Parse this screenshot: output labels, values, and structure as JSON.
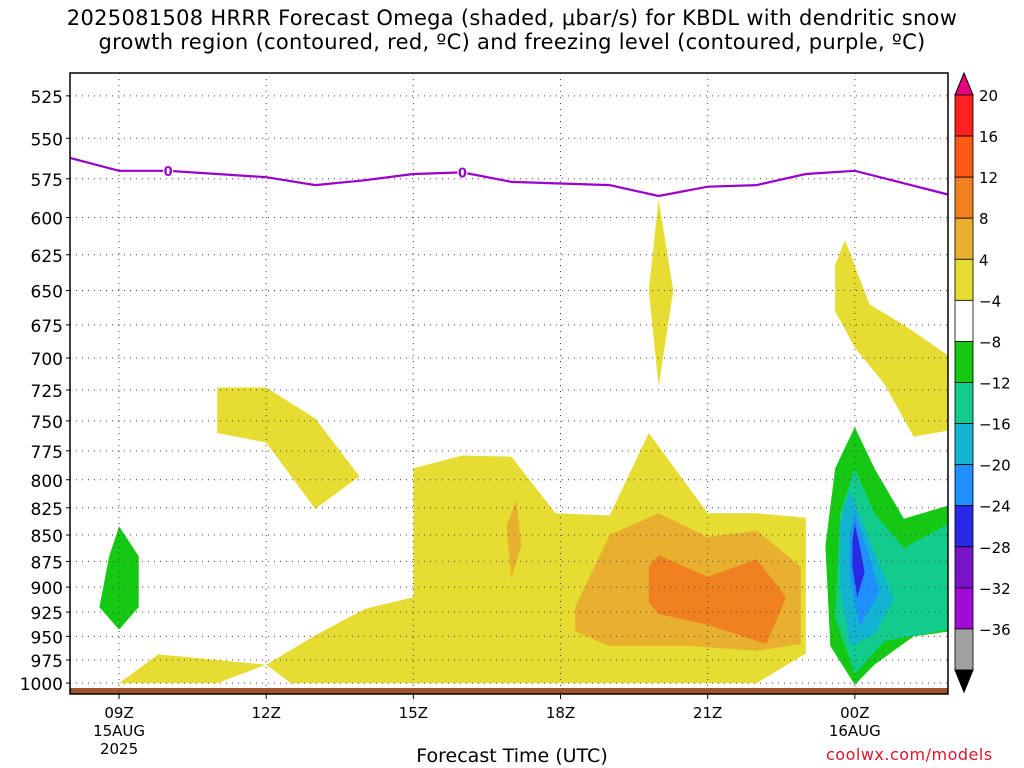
{
  "title_line1": "2025081508 HRRR Forecast Omega (shaded, μbar/s) for KBDL with dendritic snow",
  "title_line2": "growth region (contoured, red, ºC) and freezing level (contoured, purple, ºC)",
  "xlabel": "Forecast Time (UTC)",
  "credit": "coolwx.com/models",
  "chart_data": {
    "type": "heatmap",
    "title": "2025081508 HRRR Forecast Omega (shaded, μbar/s) for KBDL with dendritic snow growth region (contoured, red, ºC) and freezing level (contoured, purple, ºC)",
    "xlabel": "Forecast Time (UTC)",
    "ylabel": "",
    "x_range_hours": [
      8,
      25.9
    ],
    "y_range_hPa": [
      1012,
      512
    ],
    "y_scale": "log-pressure",
    "y_ticks": [
      525,
      550,
      575,
      600,
      625,
      650,
      675,
      700,
      725,
      750,
      775,
      800,
      825,
      850,
      875,
      900,
      925,
      950,
      975,
      1000
    ],
    "x_ticks": [
      {
        "hour": 9,
        "label": "09Z",
        "sub1": "15AUG",
        "sub2": "2025"
      },
      {
        "hour": 12,
        "label": "12Z",
        "sub1": "",
        "sub2": ""
      },
      {
        "hour": 15,
        "label": "15Z",
        "sub1": "",
        "sub2": ""
      },
      {
        "hour": 18,
        "label": "18Z",
        "sub1": "",
        "sub2": ""
      },
      {
        "hour": 21,
        "label": "21Z",
        "sub1": "",
        "sub2": ""
      },
      {
        "hour": 24,
        "label": "00Z",
        "sub1": "16AUG",
        "sub2": ""
      }
    ],
    "grid": true,
    "colorbar": {
      "placement": "right",
      "levels": [
        {
          "label": "20",
          "color": "#e6007e"
        },
        {
          "label": "16",
          "color": "#ff2020"
        },
        {
          "label": "12",
          "color": "#ff5a14"
        },
        {
          "label": "8",
          "color": "#f08020"
        },
        {
          "label": "4",
          "color": "#e8b02e"
        },
        {
          "label": "−4",
          "color": "#e6dc32"
        },
        {
          "label": "−8",
          "color": "#ffffff"
        },
        {
          "label": "−12",
          "color": "#14c814"
        },
        {
          "label": "−16",
          "color": "#12cc8e"
        },
        {
          "label": "−20",
          "color": "#12b4d2"
        },
        {
          "label": "−24",
          "color": "#1e90ff"
        },
        {
          "label": "−28",
          "color": "#2828e6"
        },
        {
          "label": "−32",
          "color": "#7a14c8"
        },
        {
          "label": "−36",
          "color": "#a00ad2"
        },
        {
          "label": "",
          "color": "#a0a0a0"
        },
        {
          "label": "",
          "color": "#000000"
        }
      ]
    },
    "freezing_level": {
      "label": "0",
      "color": "#9900cc",
      "label_hours": [
        10,
        16
      ],
      "points": [
        [
          8.0,
          562
        ],
        [
          9.0,
          570
        ],
        [
          10.0,
          570
        ],
        [
          11.0,
          572
        ],
        [
          12.0,
          574
        ],
        [
          13.0,
          579
        ],
        [
          14.0,
          576
        ],
        [
          15.0,
          572
        ],
        [
          16.0,
          571
        ],
        [
          17.0,
          577
        ],
        [
          18.0,
          578
        ],
        [
          19.0,
          579
        ],
        [
          20.0,
          586
        ],
        [
          21.0,
          580
        ],
        [
          22.0,
          579
        ],
        [
          23.0,
          572
        ],
        [
          24.0,
          570
        ],
        [
          25.9,
          585
        ]
      ]
    },
    "omega_regions": [
      {
        "level": "4 to 8",
        "color": "#e6dc32",
        "points": [
          [
            9.0,
            1000
          ],
          [
            9.8,
            969
          ],
          [
            12.0,
            980
          ],
          [
            11.0,
            1000
          ]
        ]
      },
      {
        "level": "4 to 8",
        "color": "#e6dc32",
        "points": [
          [
            12.0,
            980
          ],
          [
            13.0,
            949
          ],
          [
            14.0,
            922
          ],
          [
            15.0,
            910
          ],
          [
            15.0,
            790
          ],
          [
            16.0,
            779
          ],
          [
            17.0,
            780
          ],
          [
            17.9,
            830
          ],
          [
            19.0,
            832
          ],
          [
            19.8,
            760
          ],
          [
            21.0,
            830
          ],
          [
            22.0,
            830
          ],
          [
            23.0,
            834
          ],
          [
            23.0,
            968
          ],
          [
            22.0,
            1000
          ],
          [
            12.5,
            1000
          ]
        ]
      },
      {
        "level": "4 to 8",
        "color": "#e6dc32",
        "points": [
          [
            11.0,
            723
          ],
          [
            12.0,
            723
          ],
          [
            13.0,
            748
          ],
          [
            13.9,
            797
          ],
          [
            13.0,
            826
          ],
          [
            12.0,
            768
          ],
          [
            11.0,
            760
          ]
        ]
      },
      {
        "level": "4 to 8",
        "color": "#e6dc32",
        "points": [
          [
            20.0,
            588
          ],
          [
            20.3,
            650
          ],
          [
            20.0,
            722
          ],
          [
            19.8,
            650
          ]
        ]
      },
      {
        "level": "4 to 8",
        "color": "#e6dc32",
        "points": [
          [
            23.6,
            632
          ],
          [
            23.8,
            615
          ],
          [
            24.3,
            660
          ],
          [
            25.0,
            675
          ],
          [
            25.9,
            698
          ],
          [
            25.9,
            758
          ],
          [
            25.2,
            763
          ],
          [
            24.6,
            720
          ],
          [
            24.0,
            692
          ],
          [
            23.6,
            665
          ]
        ]
      },
      {
        "level": "8 to 12",
        "color": "#e8b02e",
        "points": [
          [
            18.3,
            920
          ],
          [
            19.0,
            850
          ],
          [
            20.0,
            830
          ],
          [
            21.0,
            852
          ],
          [
            22.0,
            846
          ],
          [
            22.9,
            880
          ],
          [
            22.9,
            958
          ],
          [
            22.0,
            965
          ],
          [
            20.6,
            960
          ],
          [
            19.0,
            960
          ],
          [
            18.3,
            945
          ]
        ]
      },
      {
        "level": "8 to 12",
        "color": "#e8b02e",
        "points": [
          [
            16.9,
            842
          ],
          [
            17.1,
            818
          ],
          [
            17.2,
            860
          ],
          [
            17.0,
            891
          ]
        ]
      },
      {
        "level": "12 to 16",
        "color": "#f08020",
        "points": [
          [
            19.8,
            880
          ],
          [
            20.0,
            869
          ],
          [
            21.0,
            890
          ],
          [
            22.0,
            873
          ],
          [
            22.6,
            910
          ],
          [
            22.2,
            958
          ],
          [
            21.0,
            938
          ],
          [
            20.0,
            927
          ],
          [
            19.8,
            915
          ]
        ]
      },
      {
        "level": "-8 to -4",
        "color": "#14c814",
        "points": [
          [
            8.6,
            920
          ],
          [
            8.8,
            870
          ],
          [
            9.0,
            842
          ],
          [
            9.4,
            870
          ],
          [
            9.4,
            920
          ],
          [
            9.0,
            943
          ]
        ]
      },
      {
        "level": "-8 to -4",
        "color": "#14c814",
        "points": [
          [
            24.0,
            755
          ],
          [
            24.4,
            790
          ],
          [
            25.0,
            835
          ],
          [
            25.9,
            823
          ],
          [
            25.9,
            945
          ],
          [
            25.2,
            950
          ],
          [
            24.4,
            980
          ],
          [
            24.0,
            1002
          ],
          [
            23.5,
            960
          ],
          [
            23.4,
            860
          ],
          [
            23.6,
            790
          ]
        ]
      },
      {
        "level": "-12 to -8",
        "color": "#12cc8e",
        "points": [
          [
            24.0,
            790
          ],
          [
            24.4,
            830
          ],
          [
            25.0,
            862
          ],
          [
            25.9,
            840
          ],
          [
            25.9,
            943
          ],
          [
            24.6,
            955
          ],
          [
            24.0,
            990
          ],
          [
            23.6,
            930
          ],
          [
            23.7,
            830
          ]
        ]
      },
      {
        "level": "-16 to -12",
        "color": "#12b4d2",
        "points": [
          [
            23.9,
            810
          ],
          [
            24.3,
            855
          ],
          [
            24.8,
            912
          ],
          [
            24.4,
            948
          ],
          [
            23.9,
            960
          ],
          [
            23.7,
            900
          ],
          [
            23.7,
            840
          ]
        ]
      },
      {
        "level": "-20 to -16",
        "color": "#1e90ff",
        "points": [
          [
            24.0,
            830
          ],
          [
            24.3,
            870
          ],
          [
            24.5,
            905
          ],
          [
            24.1,
            940
          ],
          [
            23.9,
            890
          ],
          [
            23.9,
            850
          ]
        ]
      },
      {
        "level": "-24 to -20",
        "color": "#2828e6",
        "points": [
          [
            24.0,
            840
          ],
          [
            24.1,
            860
          ],
          [
            24.2,
            885
          ],
          [
            24.05,
            910
          ],
          [
            23.95,
            880
          ],
          [
            23.95,
            855
          ]
        ]
      }
    ],
    "terrain": {
      "color": "#a0522d",
      "bottom_hPa": 1012
    }
  }
}
